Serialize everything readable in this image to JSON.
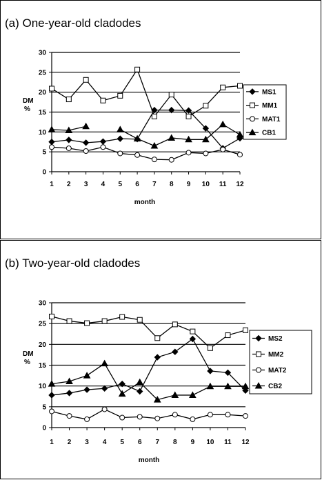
{
  "chart_data": [
    {
      "type": "line",
      "title": "(a) One-year-old cladodes",
      "xlabel": "month",
      "ylabel": "DM\n%",
      "ylim": [
        0,
        30
      ],
      "yticks": [
        0,
        5,
        10,
        15,
        20,
        25,
        30
      ],
      "x": [
        1,
        2,
        3,
        4,
        5,
        6,
        7,
        8,
        9,
        10,
        11,
        12
      ],
      "grid": "horizontal",
      "legend": "right",
      "series": [
        {
          "name": "MS1",
          "marker": "diamond",
          "values": [
            7.5,
            8.0,
            7.3,
            7.6,
            8.3,
            8.2,
            15.5,
            15.5,
            15.4,
            10.9,
            5.9,
            8.4
          ]
        },
        {
          "name": "MM1",
          "marker": "square",
          "values": [
            20.9,
            18.2,
            23.1,
            17.9,
            19.1,
            25.7,
            13.9,
            19.4,
            13.9,
            16.6,
            21.2,
            21.6
          ]
        },
        {
          "name": "MAT1",
          "marker": "circle",
          "values": [
            6.2,
            5.9,
            5.2,
            6.2,
            4.6,
            4.2,
            3.1,
            3.0,
            4.8,
            4.6,
            5.6,
            4.3
          ]
        },
        {
          "name": "CB1",
          "marker": "triangle",
          "values": [
            10.6,
            10.4,
            11.4,
            null,
            10.6,
            8.3,
            6.5,
            8.5,
            8.1,
            8.1,
            11.9,
            9.3
          ]
        }
      ]
    },
    {
      "type": "line",
      "title": "(b) Two-year-old cladodes",
      "xlabel": "month",
      "ylabel": "DM\n%",
      "ylim": [
        0,
        30
      ],
      "yticks": [
        0,
        5,
        10,
        15,
        20,
        25,
        30
      ],
      "x": [
        1,
        2,
        3,
        4,
        5,
        6,
        7,
        8,
        9,
        10,
        11,
        12
      ],
      "grid": "horizontal",
      "legend": "right",
      "series": [
        {
          "name": "MS2",
          "marker": "diamond",
          "values": [
            7.8,
            8.3,
            9.1,
            9.4,
            10.5,
            8.7,
            16.9,
            18.2,
            21.3,
            13.6,
            13.2,
            8.9
          ]
        },
        {
          "name": "MM2",
          "marker": "square",
          "values": [
            26.7,
            25.6,
            25.1,
            25.6,
            26.6,
            25.9,
            21.5,
            24.8,
            23.1,
            19.1,
            22.2,
            23.4
          ]
        },
        {
          "name": "MAT2",
          "marker": "circle",
          "values": [
            3.9,
            2.8,
            2.0,
            4.4,
            2.4,
            2.6,
            2.2,
            3.1,
            2.0,
            3.1,
            3.1,
            2.8
          ]
        },
        {
          "name": "CB2",
          "marker": "triangle",
          "values": [
            10.5,
            11.1,
            12.5,
            15.4,
            8.1,
            10.9,
            6.7,
            7.8,
            7.8,
            9.9,
            9.9,
            9.9
          ]
        }
      ]
    }
  ]
}
